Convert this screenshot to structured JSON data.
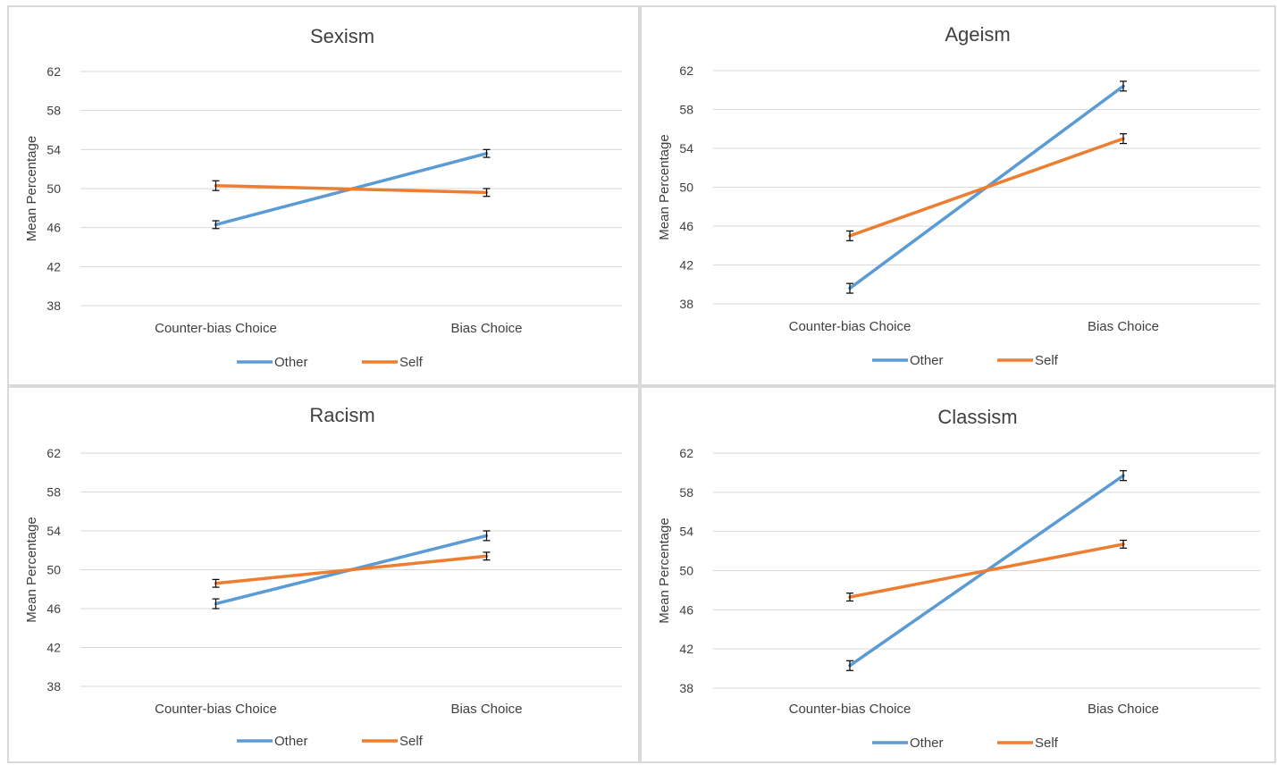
{
  "chart_data": [
    {
      "type": "line",
      "title": "Sexism",
      "xlabel": "",
      "ylabel": "Mean Percentage",
      "categories": [
        "Counter-bias Choice",
        "Bias Choice"
      ],
      "yticks": [
        38,
        42,
        46,
        50,
        54,
        58,
        62
      ],
      "ylim": [
        38,
        62
      ],
      "grid": true,
      "legend": "bottom",
      "series": [
        {
          "name": "Other",
          "color": "#5b9bd5",
          "values": [
            46.3,
            53.6
          ],
          "errors": [
            0.4,
            0.4
          ]
        },
        {
          "name": "Self",
          "color": "#ed7d31",
          "values": [
            50.3,
            49.6
          ],
          "errors": [
            0.5,
            0.4
          ]
        }
      ]
    },
    {
      "type": "line",
      "title": "Ageism",
      "xlabel": "",
      "ylabel": "Mean Percentage",
      "categories": [
        "Counter-bias Choice",
        "Bias Choice"
      ],
      "yticks": [
        38,
        42,
        46,
        50,
        54,
        58,
        62
      ],
      "ylim": [
        38,
        62
      ],
      "grid": true,
      "legend": "bottom",
      "series": [
        {
          "name": "Other",
          "color": "#5b9bd5",
          "values": [
            39.6,
            60.4
          ],
          "errors": [
            0.5,
            0.5
          ]
        },
        {
          "name": "Self",
          "color": "#ed7d31",
          "values": [
            45.0,
            55.0
          ],
          "errors": [
            0.5,
            0.5
          ]
        }
      ]
    },
    {
      "type": "line",
      "title": "Racism",
      "xlabel": "",
      "ylabel": "Mean Percentage",
      "categories": [
        "Counter-bias Choice",
        "Bias Choice"
      ],
      "yticks": [
        38,
        42,
        46,
        50,
        54,
        58,
        62
      ],
      "ylim": [
        38,
        62
      ],
      "grid": true,
      "legend": "bottom",
      "series": [
        {
          "name": "Other",
          "color": "#5b9bd5",
          "values": [
            46.5,
            53.5
          ],
          "errors": [
            0.5,
            0.5
          ]
        },
        {
          "name": "Self",
          "color": "#ed7d31",
          "values": [
            48.6,
            51.4
          ],
          "errors": [
            0.4,
            0.4
          ]
        }
      ]
    },
    {
      "type": "line",
      "title": "Classism",
      "xlabel": "",
      "ylabel": "Mean Percentage",
      "categories": [
        "Counter-bias Choice",
        "Bias Choice"
      ],
      "yticks": [
        38,
        42,
        46,
        50,
        54,
        58,
        62
      ],
      "ylim": [
        38,
        62
      ],
      "grid": true,
      "legend": "bottom",
      "series": [
        {
          "name": "Other",
          "color": "#5b9bd5",
          "values": [
            40.3,
            59.7
          ],
          "errors": [
            0.5,
            0.5
          ]
        },
        {
          "name": "Self",
          "color": "#ed7d31",
          "values": [
            47.3,
            52.7
          ],
          "errors": [
            0.4,
            0.4
          ]
        }
      ]
    }
  ]
}
